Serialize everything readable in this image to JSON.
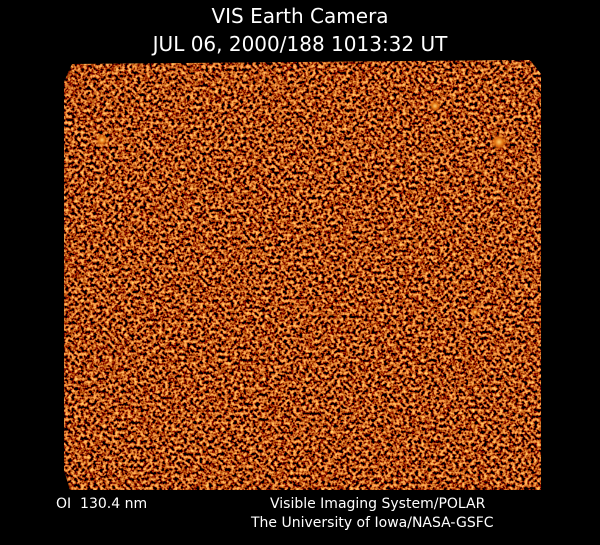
{
  "header": {
    "title": "VIS Earth Camera",
    "timestamp": "JUL 06, 2000/188 1013:32 UT"
  },
  "footer": {
    "wavelength": "OI  130.4 nm",
    "instrument": "Visible Imaging System/POLAR",
    "institution": "The University of Iowa/NASA-GSFC"
  }
}
